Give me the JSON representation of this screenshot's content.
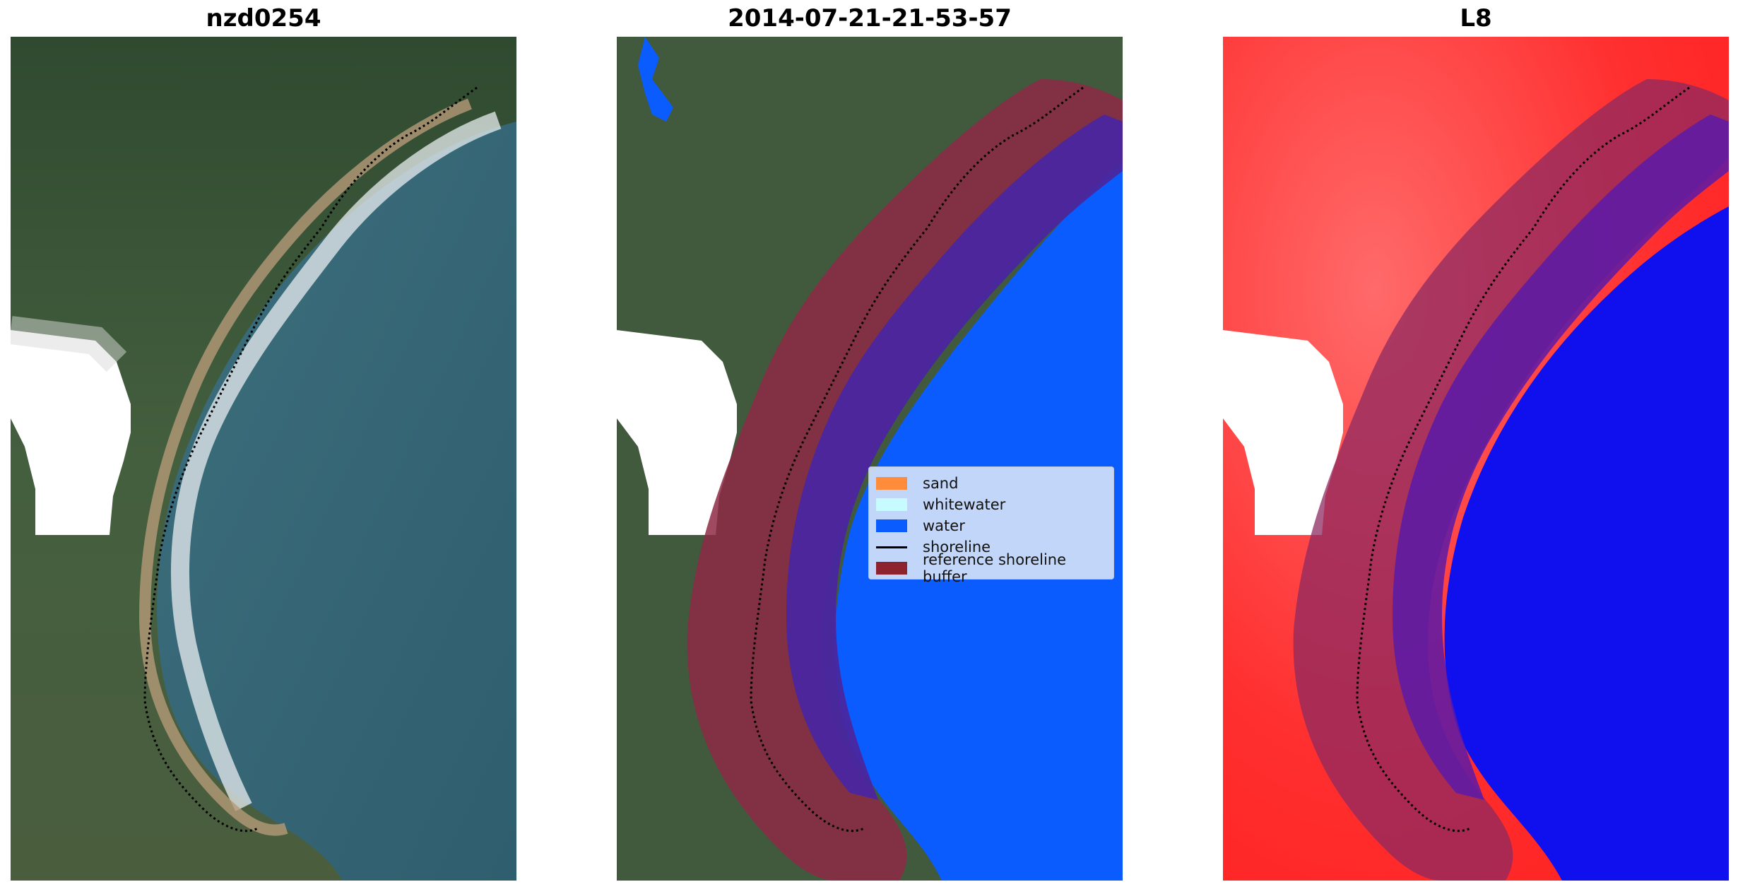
{
  "panels": [
    {
      "title": "nzd0254",
      "kind": "rgb"
    },
    {
      "title": "2014-07-21-21-53-57",
      "kind": "classification"
    },
    {
      "title": "L8",
      "kind": "water-index"
    }
  ],
  "legend": {
    "items": [
      {
        "label": "sand",
        "color": "#ff8c3a"
      },
      {
        "label": "whitewater",
        "color": "#c8fbff"
      },
      {
        "label": "water",
        "color": "#0a5cff"
      },
      {
        "label": "shoreline",
        "color": "#000000"
      },
      {
        "label": "reference shoreline buffer",
        "color": "#8e2330"
      }
    ]
  },
  "colors": {
    "land": "#3f5a3a",
    "sea": "#356a7a",
    "buffer": "#8e2a45",
    "water_class": "#0a5cff",
    "index_land": "#ff2a2a",
    "index_water": "#1010ee",
    "cloud": "#ffffff"
  }
}
